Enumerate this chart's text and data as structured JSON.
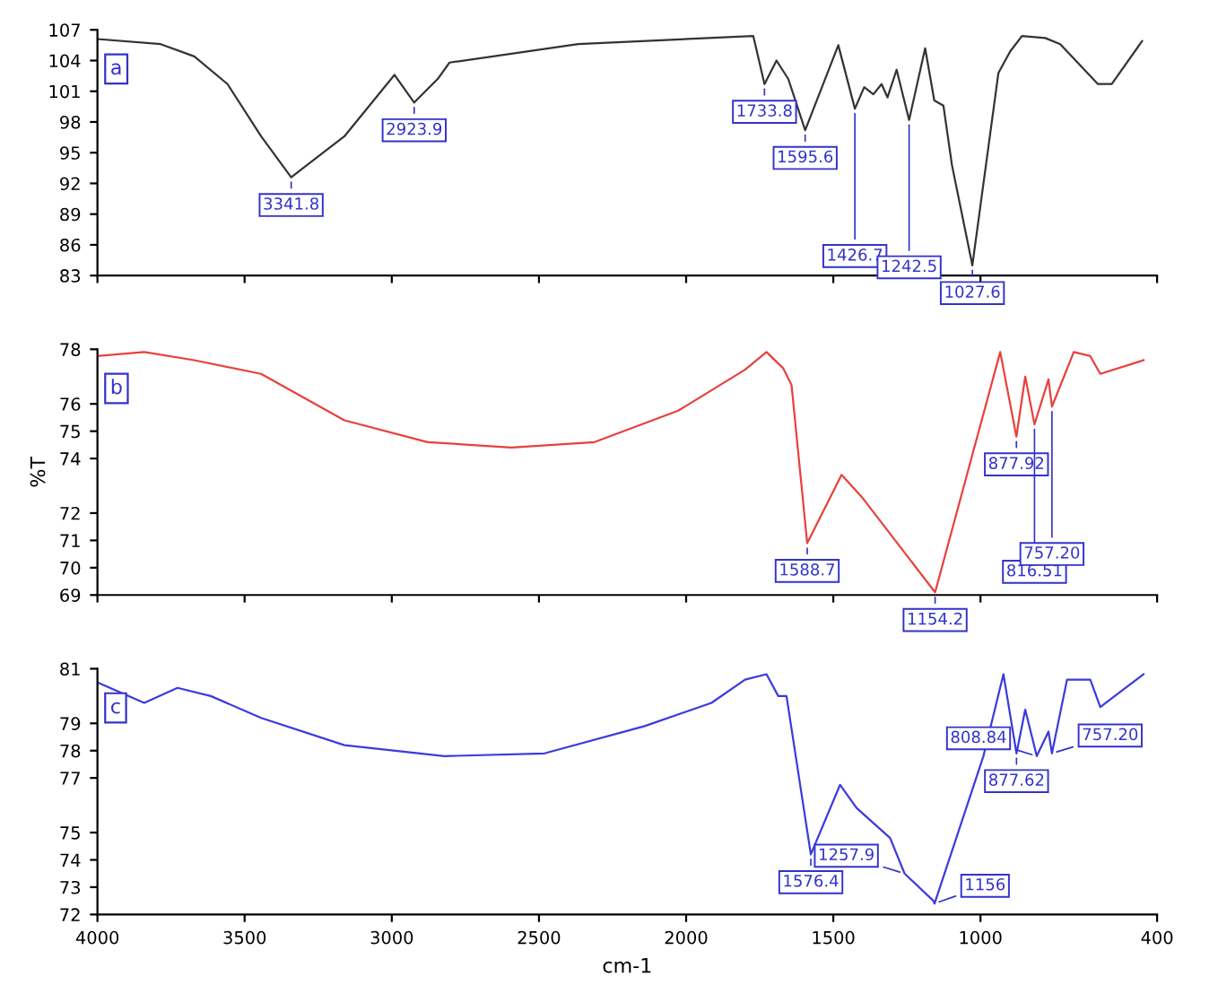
{
  "chart_data": [
    {
      "type": "line",
      "xlim": [
        4000,
        400
      ],
      "xticks": [
        4000,
        3500,
        3000,
        2500,
        2000,
        1500,
        1000,
        400
      ],
      "ylim": [
        83,
        107
      ],
      "yticks": [
        {
          "value": 107,
          "label": "107"
        },
        {
          "value": 104,
          "label": "104"
        },
        {
          "value": 101,
          "label": "101"
        },
        {
          "value": 98,
          "label": "98"
        },
        {
          "value": 95,
          "label": "95"
        },
        {
          "value": 92,
          "label": "92"
        },
        {
          "value": 89,
          "label": "89"
        },
        {
          "value": 86,
          "label": "86"
        },
        {
          "value": 83,
          "label": "83"
        }
      ],
      "tick_labels": "y",
      "x": [
        4000,
        3785,
        3671,
        3558,
        3444,
        3341.8,
        3161,
        2991,
        2923.9,
        2844,
        2804,
        2367,
        1772,
        1733.8,
        1693,
        1653,
        1595.6,
        1483,
        1426.7,
        1395,
        1364,
        1336,
        1316,
        1285,
        1242.5,
        1188,
        1157,
        1126,
        1097,
        1027.6,
        939,
        899,
        859,
        780,
        729,
        601,
        554,
        451
      ],
      "series": [
        {
          "color": "#333333",
          "values": [
            106.1,
            105.6,
            104.4,
            101.7,
            96.6,
            92.6,
            96.6,
            102.6,
            99.9,
            102.2,
            103.8,
            105.6,
            106.4,
            101.7,
            104.0,
            102.2,
            97.2,
            105.5,
            99.3,
            101.4,
            100.7,
            101.7,
            100.4,
            103.1,
            98.2,
            105.2,
            100.1,
            99.6,
            93.8,
            84.0,
            102.8,
            104.9,
            106.4,
            106.2,
            105.6,
            101.7,
            101.7,
            105.9
          ]
        }
      ],
      "annotations": [
        "a",
        {
          "text": "3341.8",
          "x": 3341.8,
          "y": 92.6
        },
        {
          "text": "2923.9",
          "x": 2923.9,
          "y": 99.9
        },
        {
          "text": "1733.8",
          "x": 1733.8,
          "y": 101.7
        },
        {
          "text": "1595.6",
          "x": 1595.6,
          "y": 97.2
        },
        {
          "text": "1426.7",
          "x": 1426.7,
          "y": 99.3
        },
        {
          "text": "1242.5",
          "x": 1242.5,
          "y": 98.2
        },
        {
          "text": "1027.6",
          "x": 1027.6,
          "y": 84.0
        }
      ]
    },
    {
      "type": "line",
      "xlim": [
        4000,
        400
      ],
      "xticks": [
        4000,
        3500,
        3000,
        2500,
        2000,
        1500,
        1000,
        400
      ],
      "ylim": [
        69,
        78
      ],
      "yticks": [
        78,
        76,
        75,
        74,
        72,
        71,
        70,
        69
      ],
      "tick_labels": "y",
      "ylabel": "%T",
      "x": [
        4000,
        3841,
        3671,
        3444,
        3161,
        2878,
        2594,
        2311,
        2027,
        1800,
        1727,
        1670,
        1642,
        1588.7,
        1472,
        1404,
        1154.2,
        933,
        877.92,
        848,
        816.51,
        769,
        757.2,
        683,
        627,
        593,
        446
      ],
      "series": [
        {
          "color": "#e8413c",
          "values": [
            77.75,
            77.9,
            77.6,
            77.1,
            75.4,
            74.6,
            74.4,
            74.6,
            75.75,
            77.25,
            77.9,
            77.3,
            76.7,
            70.9,
            73.4,
            72.6,
            69.1,
            77.9,
            74.8,
            77.0,
            75.25,
            76.9,
            75.9,
            77.9,
            77.75,
            77.1,
            77.6
          ]
        }
      ],
      "annotations": [
        "b",
        {
          "text": "1588.7",
          "x": 1588.7,
          "y": 70.9
        },
        {
          "text": "1154.2",
          "x": 1154.2,
          "y": 69.1
        },
        {
          "text": "877.92",
          "x": 877.92,
          "y": 74.8
        },
        {
          "text": "816.51",
          "x": 816.51,
          "y": 75.25
        },
        {
          "text": "757.20",
          "x": 757.2,
          "y": 75.9
        }
      ]
    },
    {
      "type": "line",
      "xlim": [
        4000,
        400
      ],
      "xticks": [
        4000,
        3500,
        3000,
        2500,
        2000,
        1500,
        1000,
        400
      ],
      "ylim": [
        72,
        81
      ],
      "yticks": [
        81,
        79,
        78,
        77,
        75,
        74,
        73,
        72
      ],
      "xlabel": "cm-1",
      "x": [
        4000,
        3841,
        3728,
        3615,
        3444,
        3161,
        2821,
        2481,
        2141,
        1914,
        1800,
        1727,
        1687,
        1659,
        1576.4,
        1477,
        1421,
        1307,
        1257.9,
        1160,
        1156,
        990,
        922,
        877.62,
        848,
        808.84,
        769,
        757.2,
        706,
        627,
        593,
        446
      ],
      "series": [
        {
          "color": "#3b3bdd",
          "values": [
            80.5,
            79.75,
            80.3,
            80.0,
            79.2,
            78.2,
            77.8,
            77.9,
            78.9,
            79.75,
            80.6,
            80.8,
            80.0,
            80.0,
            74.2,
            76.75,
            75.9,
            74.8,
            73.5,
            72.5,
            72.4,
            77.8,
            80.8,
            77.9,
            79.5,
            77.8,
            78.7,
            77.9,
            80.6,
            80.6,
            79.6,
            80.8
          ]
        }
      ],
      "annotations": [
        "c",
        {
          "text": "1576.4",
          "x": 1576.4,
          "y": 74.2
        },
        {
          "text": "1257.9",
          "x": 1257.9,
          "y": 73.5
        },
        {
          "text": "1156",
          "x": 1156,
          "y": 72.4
        },
        {
          "text": "877.62",
          "x": 877.62,
          "y": 77.9
        },
        {
          "text": "808.84",
          "x": 808.84,
          "y": 77.8
        },
        {
          "text": "757.20",
          "x": 757.2,
          "y": 77.9
        }
      ]
    }
  ]
}
